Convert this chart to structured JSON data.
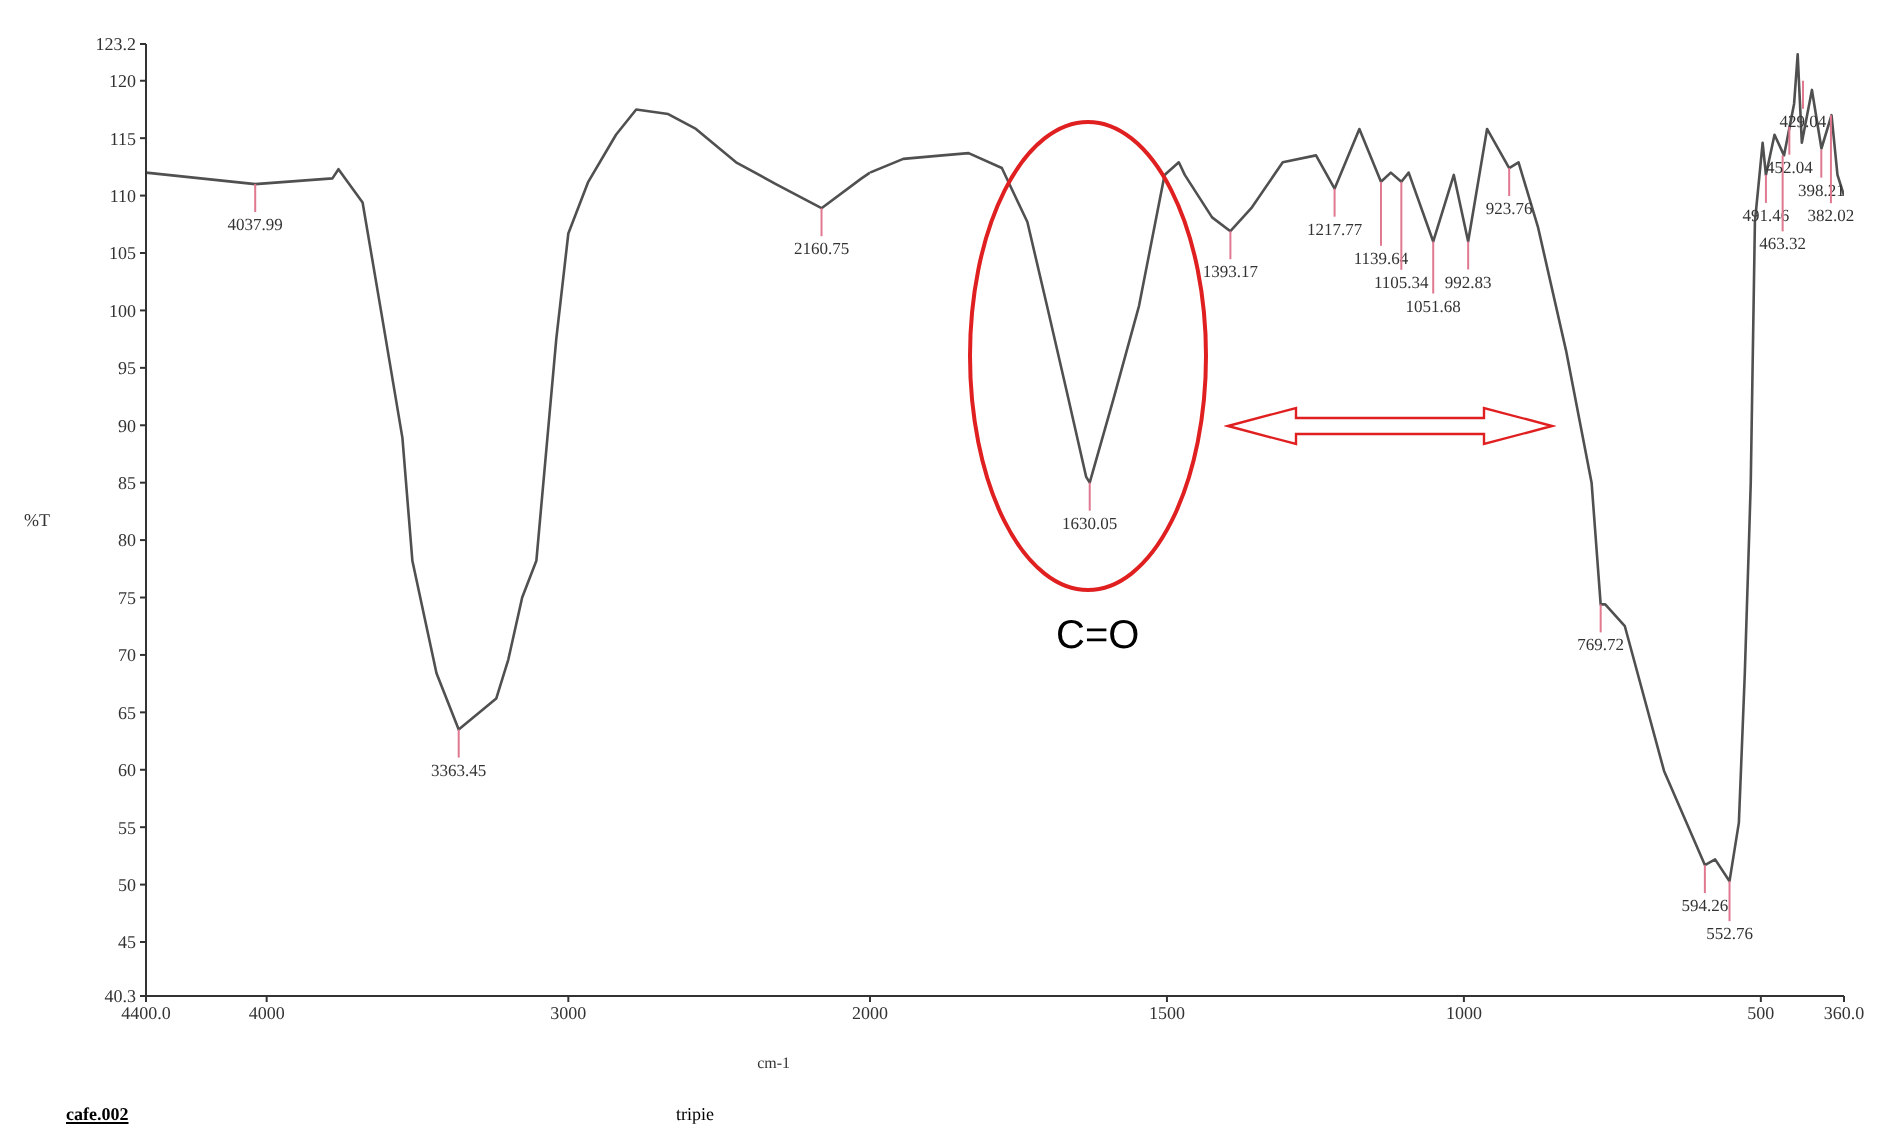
{
  "chart_data": [
    {
      "type": "line",
      "xlabel": "cm-1",
      "ylabel": "%T",
      "xlim": [
        4400,
        2000
      ],
      "xticks": [
        {
          "value": 4400,
          "label": "4400.0"
        },
        4000,
        3000
      ],
      "ylim": [
        40.3,
        123.2
      ],
      "yticks": [
        {
          "value": 40.3,
          "label": "40.3"
        },
        45,
        50,
        55,
        60,
        65,
        70,
        75,
        80,
        85,
        90,
        95,
        100,
        105,
        110,
        115,
        120,
        {
          "value": 123.2,
          "label": "123.2"
        }
      ],
      "marker": "none",
      "line_style": "solid",
      "series": [
        {
          "color": "#505050",
          "x": [
            4400,
            4037.99,
            3782,
            3762,
            3682,
            3616,
            3550,
            3517,
            3437,
            3363.45,
            3239,
            3199,
            3153,
            3106,
            3040,
            3000,
            2934,
            2842,
            2775,
            2669,
            2577,
            2444,
            2312,
            2160.75,
            2028,
            2000
          ],
          "values": [
            112,
            111,
            111.5,
            112.3,
            109.4,
            99.2,
            88.9,
            78.2,
            68.4,
            63.5,
            66.2,
            69.6,
            75,
            78.2,
            97.5,
            106.7,
            111.2,
            115.3,
            117.5,
            117.1,
            115.8,
            112.9,
            111,
            108.9,
            111.5,
            112
          ]
        }
      ],
      "annotations": [
        {
          "text": "4037.99",
          "x": 4037.99,
          "y": 111
        },
        {
          "text": "3363.45",
          "x": 3363.45,
          "y": 63.5
        },
        {
          "text": "2160.75",
          "x": 2160.75,
          "y": 108.9
        },
        "cafe.002",
        "tripie"
      ]
    },
    {
      "type": "line",
      "xlim": [
        2000,
        360
      ],
      "xticks": [
        2000,
        1500,
        1000,
        500,
        {
          "value": 360,
          "label": "360.0"
        }
      ],
      "ylim": [
        40.3,
        123.2
      ],
      "tick_labels": "x",
      "marker": "none",
      "line_style": "solid",
      "series": [
        {
          "color": "#505050",
          "x": [
            2000,
            1944,
            1878,
            1834,
            1778,
            1735,
            1702,
            1669,
            1636,
            1630.05,
            1590,
            1547,
            1504,
            1480,
            1470,
            1424,
            1393.17,
            1358,
            1305,
            1249,
            1217.77,
            1176,
            1139.64,
            1123,
            1105.34,
            1093,
            1051.68,
            1017,
            992.83,
            961,
            923.76,
            908,
            875,
            828,
            785,
            769.72,
            762,
            729,
            663,
            594.26,
            577,
            552.76,
            537,
            527,
            520,
            517,
            510,
            497,
            491.46,
            477,
            461,
            444,
            438,
            431,
            414,
            398,
            381,
            371,
            360
          ],
          "values": [
            112,
            113.2,
            113.5,
            113.7,
            112.4,
            107.7,
            100.4,
            93,
            85.5,
            85,
            92.3,
            100.4,
            111.8,
            112.9,
            111.8,
            108.1,
            106.9,
            108.9,
            112.9,
            113.5,
            110.6,
            115.8,
            111.2,
            112,
            111.2,
            112,
            106,
            111.8,
            106,
            115.8,
            112.4,
            112.9,
            107.2,
            96.5,
            85,
            74.4,
            74.4,
            72.5,
            59.9,
            51.7,
            52.2,
            50.3,
            55.4,
            68.4,
            79.9,
            85,
            107.7,
            114.6,
            111.8,
            115.3,
            113.5,
            118,
            122.3,
            114.6,
            119.2,
            114.1,
            117,
            111.8,
            110
          ]
        }
      ],
      "annotations": [
        {
          "text": "1630.05",
          "x": 1630.05,
          "y": 85
        },
        {
          "text": "1393.17",
          "x": 1393.17,
          "y": 106.9
        },
        {
          "text": "1217.77",
          "x": 1217.77,
          "y": 110.6
        },
        {
          "text": "1139.64",
          "x": 1139.64,
          "y": 111.2
        },
        {
          "text": "1105.34",
          "x": 1105.34,
          "y": 111.2
        },
        {
          "text": "1051.68",
          "x": 1051.68,
          "y": 106
        },
        {
          "text": "992.83",
          "x": 992.83,
          "y": 106
        },
        {
          "text": "923.76",
          "x": 923.76,
          "y": 112.4
        },
        {
          "text": "769.72",
          "x": 769.72,
          "y": 74.4
        },
        {
          "text": "594.26",
          "x": 594.26,
          "y": 51.7
        },
        {
          "text": "552.76",
          "x": 552.76,
          "y": 50.3
        },
        {
          "text": "491.46",
          "x": 491.46,
          "y": 111.8
        },
        {
          "text": "463.32",
          "x": 463.32,
          "y": 113.5
        },
        {
          "text": "452.04",
          "x": 452.04,
          "y": 116
        },
        {
          "text": "429.04",
          "x": 429.04,
          "y": 120
        },
        {
          "text": "398.21",
          "x": 398.21,
          "y": 114
        },
        {
          "text": "382.02",
          "x": 382.02,
          "y": 117
        },
        "C=O"
      ]
    }
  ]
}
